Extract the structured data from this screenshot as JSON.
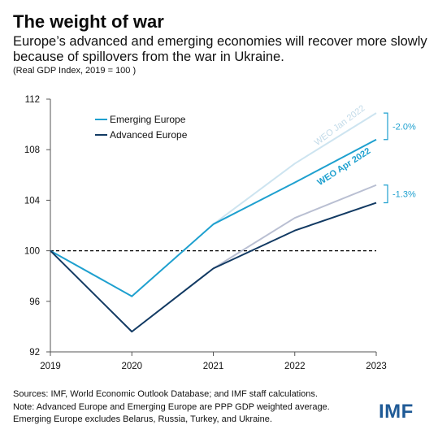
{
  "title": "The weight of war",
  "subtitle": "Europe’s advanced and emerging economies will recover more slowly because of spillovers from the war in Ukraine.",
  "units": "(Real GDP Index, 2019 = 100 )",
  "footnotes": [
    "Sources: IMF, World Economic Outlook Database; and IMF staff calculations.",
    "Note: Advanced Europe and Emerging Europe are PPP GDP weighted average.",
    "Emerging Europe excludes Belarus, Russia, Turkey, and Ukraine."
  ],
  "logo_text": "IMF",
  "colors": {
    "emerging": "#1ea0cf",
    "advanced": "#123a63",
    "emerging_jan": "#cde4f0",
    "advanced_jan": "#b9bfd2",
    "reference": "#000000"
  },
  "chart_data": {
    "type": "line",
    "x": [
      "2019",
      "2020",
      "2021",
      "2022",
      "2023"
    ],
    "ylim": [
      92,
      112
    ],
    "yticks": [
      92,
      96,
      100,
      104,
      108,
      112
    ],
    "reference_line": 100,
    "grid": false,
    "legend_position": "top-left",
    "series": [
      {
        "name": "Emerging Europe",
        "values": [
          100,
          96.4,
          102.1,
          105.4,
          108.8
        ]
      },
      {
        "name": "Advanced Europe",
        "values": [
          100,
          93.6,
          98.6,
          101.6,
          103.8
        ]
      },
      {
        "name": "WEO Jan 2022",
        "values": [
          null,
          null,
          102.1,
          106.9,
          110.9
        ]
      },
      {
        "name": "",
        "values": [
          null,
          null,
          98.6,
          102.6,
          105.2
        ]
      }
    ],
    "annotations": {
      "label_jan": "WEO Jan 2022",
      "label_apr": "WEO Apr 2022",
      "emerging_gap": "-2.0%",
      "advanced_gap": "-1.3%"
    }
  }
}
